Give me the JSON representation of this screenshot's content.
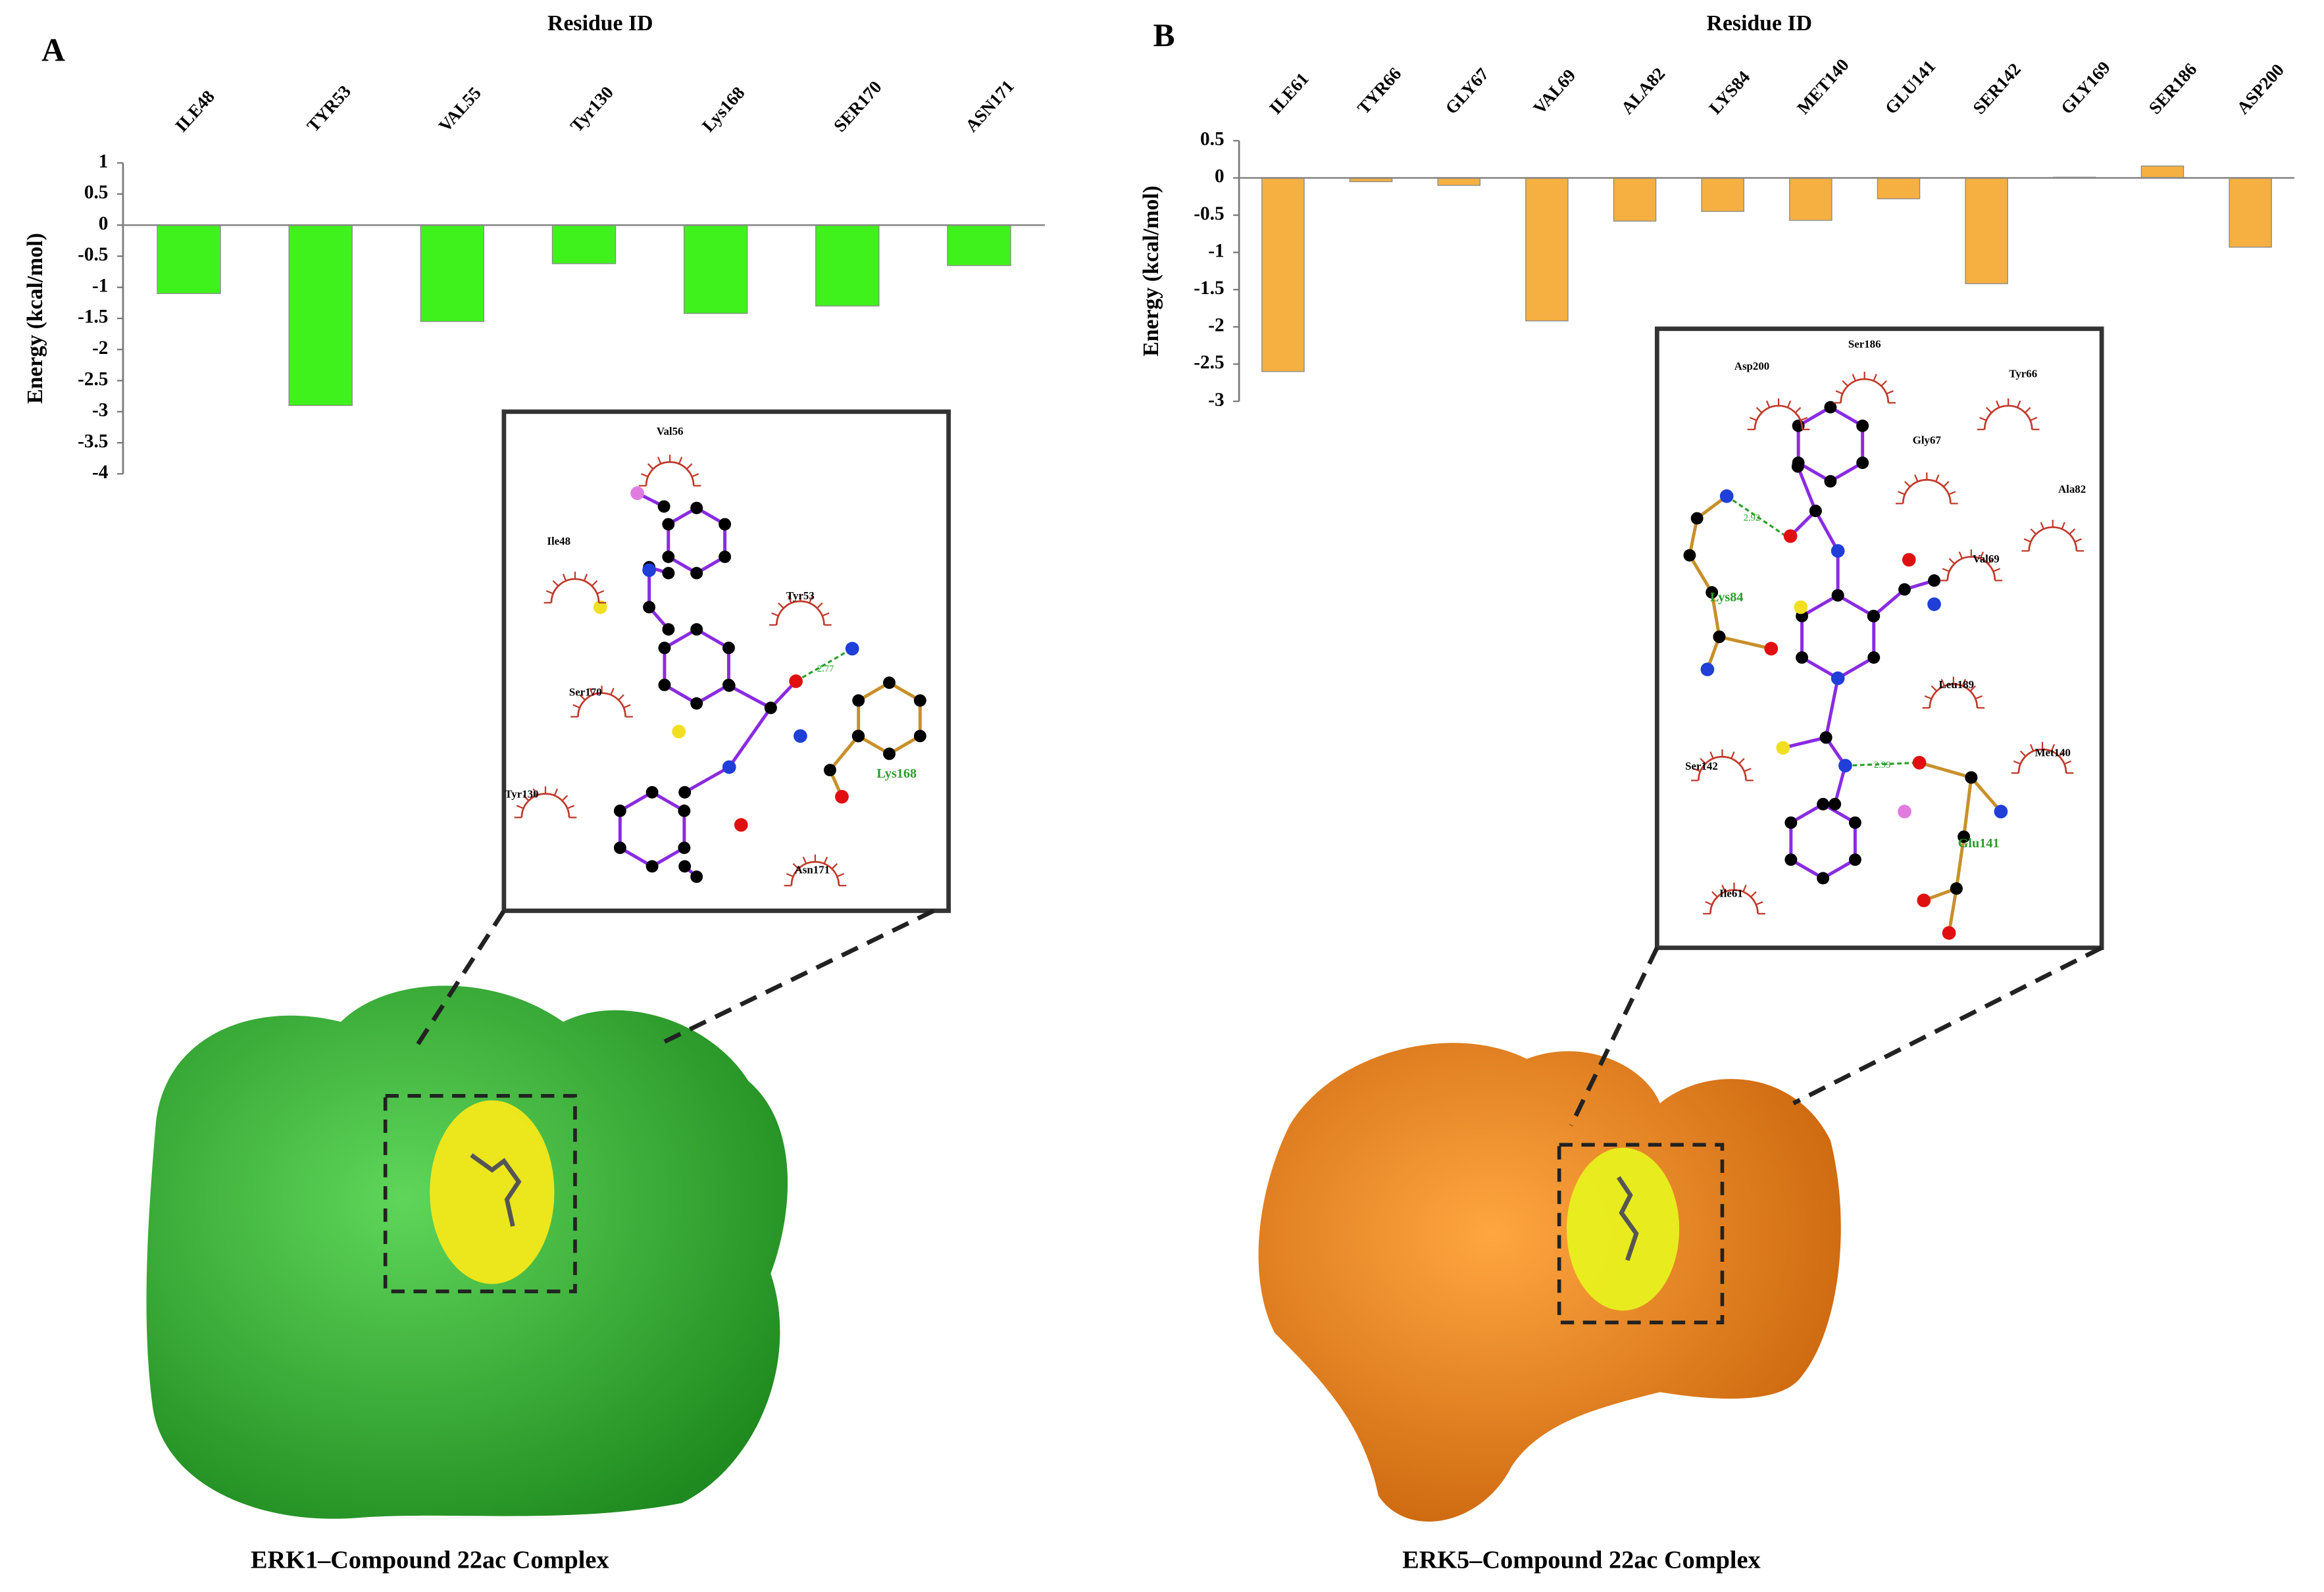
{
  "panel_labels": [
    "A",
    "B"
  ],
  "chart_data": [
    {
      "type": "bar",
      "x_label": "Residue ID",
      "y_label": "Energy (kcal/mol)",
      "categories": [
        "ILE48",
        "TYR53",
        "VAL55",
        "Tyr130",
        "Lys168",
        "SER170",
        "ASN171"
      ],
      "values": [
        -1.1,
        -2.9,
        -1.55,
        -0.62,
        -1.42,
        -1.3,
        -0.65
      ],
      "color": "#3ff21b",
      "ylim": [
        -4,
        1
      ],
      "yticks": [
        1,
        0.5,
        0,
        -0.5,
        -1,
        -1.5,
        -2,
        -2.5,
        -3,
        -3.5,
        -4
      ]
    },
    {
      "type": "bar",
      "x_label": "Residue ID",
      "y_label": "Energy (kcal/mol)",
      "categories": [
        "ILE61",
        "TYR66",
        "GLY67",
        "VAL69",
        "ALA82",
        "LYS84",
        "MET140",
        "GLU141",
        "SER142",
        "GLY169",
        "SER186",
        "ASP200"
      ],
      "values": [
        -2.6,
        -0.05,
        -0.1,
        -1.92,
        -0.58,
        -0.45,
        -0.57,
        -0.28,
        -1.42,
        0.01,
        0.16,
        -0.93
      ],
      "color": "#f5b041",
      "ylim": [
        -3,
        0.5
      ],
      "yticks": [
        0.5,
        0,
        -0.5,
        -1,
        -1.5,
        -2,
        -2.5,
        -3
      ]
    }
  ],
  "interaction_diagrams": [
    {
      "hydrophobic_residues": [
        "Val56",
        "Ile48",
        "Tyr53",
        "Ser170",
        "Tyr130",
        "Asn171"
      ],
      "hbond_residues": [
        "Lys168"
      ],
      "hbond_distances": [
        2.77
      ]
    },
    {
      "hydrophobic_residues": [
        "Ser186",
        "Asp200",
        "Tyr66",
        "Gly67",
        "Ala82",
        "Val69",
        "Leu189",
        "Met140",
        "Ser142",
        "Ile61"
      ],
      "hbond_residues": [
        "Lys84",
        "Glu141"
      ],
      "hbond_distances": [
        2.92,
        2.99
      ]
    }
  ],
  "captions": [
    "ERK1–Compound 22ac Complex",
    "ERK5–Compound 22ac Complex"
  ]
}
